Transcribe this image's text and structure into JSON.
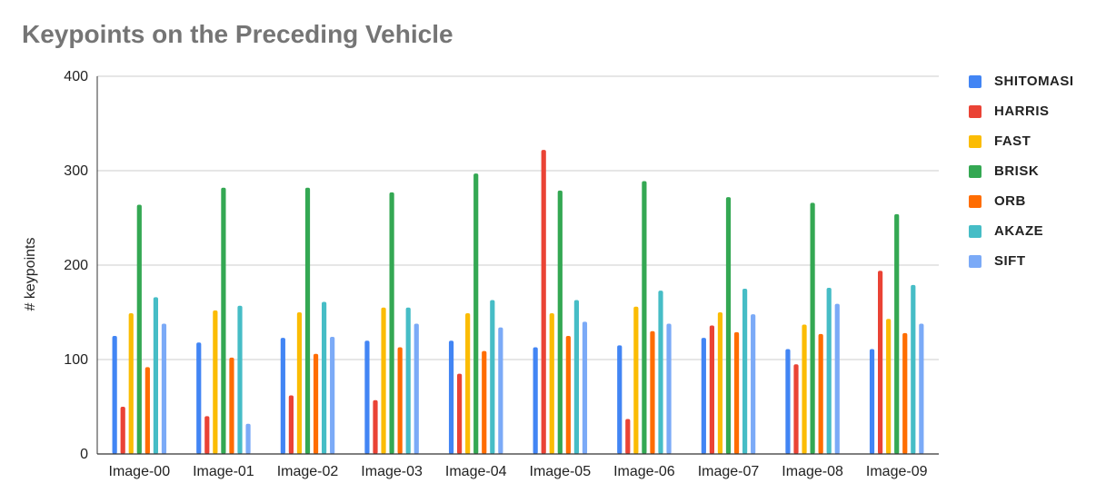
{
  "chart_data": {
    "type": "bar",
    "title": "Keypoints on the Preceding Vehicle",
    "xlabel": "",
    "ylabel": "# keypoints",
    "ylim": [
      0,
      400
    ],
    "yticks": [
      "0",
      "100",
      "200",
      "300",
      "400"
    ],
    "grid": true,
    "legend_position": "right",
    "categories": [
      "Image-00",
      "Image-01",
      "Image-02",
      "Image-03",
      "Image-04",
      "Image-05",
      "Image-06",
      "Image-07",
      "Image-08",
      "Image-09"
    ],
    "series": [
      {
        "name": "SHITOMASI",
        "color": "#4285f4",
        "values": [
          125,
          118,
          123,
          120,
          120,
          113,
          115,
          123,
          111,
          111
        ]
      },
      {
        "name": "HARRIS",
        "color": "#ea4335",
        "values": [
          50,
          40,
          62,
          57,
          85,
          322,
          37,
          136,
          95,
          194
        ]
      },
      {
        "name": "FAST",
        "color": "#fbbc04",
        "values": [
          149,
          152,
          150,
          155,
          149,
          149,
          156,
          150,
          137,
          143
        ]
      },
      {
        "name": "BRISK",
        "color": "#34a853",
        "values": [
          264,
          282,
          282,
          277,
          297,
          279,
          289,
          272,
          266,
          254
        ]
      },
      {
        "name": "ORB",
        "color": "#ff6d01",
        "values": [
          92,
          102,
          106,
          113,
          109,
          125,
          130,
          129,
          127,
          128
        ]
      },
      {
        "name": "AKAZE",
        "color": "#46bdc6",
        "values": [
          166,
          157,
          161,
          155,
          163,
          163,
          173,
          175,
          176,
          179
        ]
      },
      {
        "name": "SIFT",
        "color": "#7baaf7",
        "values": [
          138,
          32,
          124,
          138,
          134,
          140,
          138,
          148,
          159,
          138
        ]
      }
    ]
  }
}
